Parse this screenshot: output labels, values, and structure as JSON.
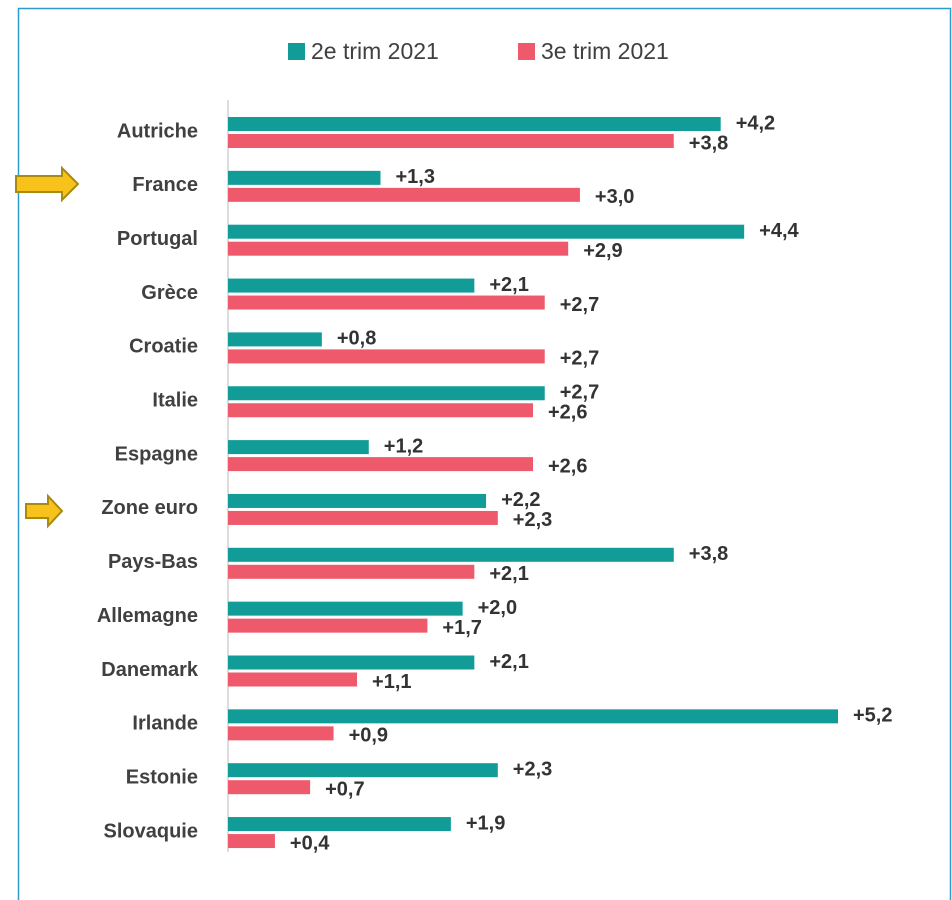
{
  "chart_data": {
    "type": "barh",
    "categories": [
      "Autriche",
      "France",
      "Portugal",
      "Grèce",
      "Croatie",
      "Italie",
      "Espagne",
      "Zone euro",
      "Pays-Bas",
      "Allemagne",
      "Danemark",
      "Irlande",
      "Estonie",
      "Slovaquie"
    ],
    "series": [
      {
        "name": "2e trim 2021",
        "color": "#119c98",
        "values": [
          4.2,
          1.3,
          4.4,
          2.1,
          0.8,
          2.7,
          1.2,
          2.2,
          3.8,
          2.0,
          2.1,
          5.2,
          2.3,
          1.9
        ],
        "value_labels": [
          "+4,2",
          "+1,3",
          "+4,4",
          "+2,1",
          "+0,8",
          "+2,7",
          "+1,2",
          "+2,2",
          "+3,8",
          "+2,0",
          "+2,1",
          "+5,2",
          "+2,3",
          "+1,9"
        ]
      },
      {
        "name": "3e trim 2021",
        "color": "#ee5a6b",
        "values": [
          3.8,
          3.0,
          2.9,
          2.7,
          2.7,
          2.6,
          2.6,
          2.3,
          2.1,
          1.7,
          1.1,
          0.9,
          0.7,
          0.4
        ],
        "value_labels": [
          "+3,8",
          "+3,0",
          "+2,9",
          "+2,7",
          "+2,7",
          "+2,6",
          "+2,6",
          "+2,3",
          "+2,1",
          "+1,7",
          "+1,1",
          "+0,9",
          "+0,7",
          "+0,4"
        ]
      }
    ],
    "xlim": [
      0,
      5.2
    ],
    "legend": "top"
  }
}
